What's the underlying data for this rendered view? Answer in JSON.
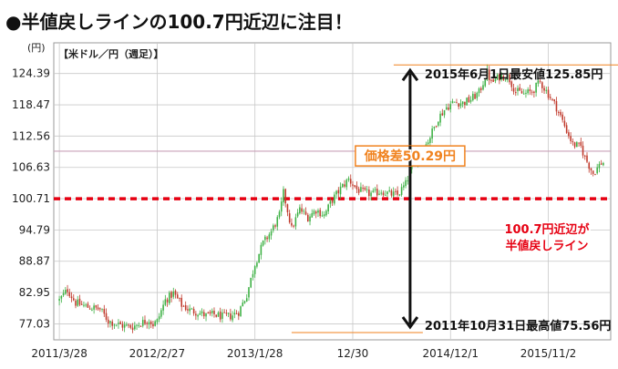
{
  "chart_data": {
    "type": "candlestick",
    "title": "●半値戻しラインの100.7円近辺に注目！",
    "unit_label": "(円)",
    "series_label": "【米ドル／円（週足）】",
    "ylim": [
      74.0,
      130.2
    ],
    "yticks": [
      "124.39",
      "118.47",
      "112.56",
      "106.63",
      "100.71",
      "94.79",
      "88.87",
      "82.95",
      "77.03"
    ],
    "ytick_values": [
      124.39,
      118.47,
      112.56,
      106.63,
      100.71,
      94.79,
      88.87,
      82.95,
      77.03
    ],
    "xticks": [
      "2011/3/28",
      "2012/2/27",
      "2013/1/28",
      "12/30",
      "2014/12/1",
      "2015/11/2"
    ],
    "xtick_weeks": [
      0,
      48,
      96,
      144,
      192,
      240
    ],
    "n_weeks": 268,
    "weekly_close_path": [
      [
        0,
        81.5
      ],
      [
        4,
        83.5
      ],
      [
        8,
        81.0
      ],
      [
        14,
        80.2
      ],
      [
        20,
        79.8
      ],
      [
        24,
        77.6
      ],
      [
        28,
        77.0
      ],
      [
        32,
        76.6
      ],
      [
        36,
        76.5
      ],
      [
        40,
        77.2
      ],
      [
        44,
        77.8
      ],
      [
        46,
        76.9
      ],
      [
        48,
        77.5
      ],
      [
        52,
        81.5
      ],
      [
        56,
        82.8
      ],
      [
        60,
        80.6
      ],
      [
        64,
        79.6
      ],
      [
        68,
        79.2
      ],
      [
        72,
        78.6
      ],
      [
        76,
        78.8
      ],
      [
        80,
        78.4
      ],
      [
        84,
        78.5
      ],
      [
        88,
        79.3
      ],
      [
        92,
        82.5
      ],
      [
        96,
        88.4
      ],
      [
        100,
        92.3
      ],
      [
        104,
        94.5
      ],
      [
        108,
        97.5
      ],
      [
        110,
        101.8
      ],
      [
        112,
        98.5
      ],
      [
        114,
        95.0
      ],
      [
        118,
        98.7
      ],
      [
        122,
        97.2
      ],
      [
        126,
        98.6
      ],
      [
        130,
        97.6
      ],
      [
        134,
        100.5
      ],
      [
        138,
        102.6
      ],
      [
        142,
        104.4
      ],
      [
        146,
        102.5
      ],
      [
        150,
        101.8
      ],
      [
        154,
        101.6
      ],
      [
        158,
        102.2
      ],
      [
        162,
        101.6
      ],
      [
        166,
        101.4
      ],
      [
        170,
        103.5
      ],
      [
        174,
        107.9
      ],
      [
        178,
        109.5
      ],
      [
        182,
        112.5
      ],
      [
        186,
        116.0
      ],
      [
        190,
        118.0
      ],
      [
        194,
        119.0
      ],
      [
        198,
        118.8
      ],
      [
        202,
        119.5
      ],
      [
        206,
        120.8
      ],
      [
        210,
        124.6
      ],
      [
        212,
        122.6
      ],
      [
        216,
        123.8
      ],
      [
        220,
        124.0
      ],
      [
        224,
        121.0
      ],
      [
        228,
        120.5
      ],
      [
        232,
        121.0
      ],
      [
        236,
        122.8
      ],
      [
        240,
        120.5
      ],
      [
        244,
        118.0
      ],
      [
        248,
        114.5
      ],
      [
        252,
        111.0
      ],
      [
        256,
        110.5
      ],
      [
        258,
        108.5
      ],
      [
        262,
        105.5
      ],
      [
        264,
        106.5
      ],
      [
        266,
        107.5
      ]
    ],
    "horizontal_lines": [
      {
        "label": "100.7円近辺が",
        "label2": "半値戻しライン",
        "value": 100.71,
        "style": "dashed",
        "color": "#e60012"
      },
      {
        "value": 109.7,
        "style": "solid",
        "color": "#c9a0b8"
      }
    ],
    "range_annotation": {
      "label": "価格差50.29円",
      "high_value": 125.85,
      "low_value": 75.56,
      "high_label": "2015年6月1日最安値125.85円",
      "low_label": "2011年10月31日最高値75.56円",
      "x_week": 97
    },
    "colors": {
      "up": "#3cb043",
      "down": "#c0392b",
      "accent": "#f0821e",
      "red_line": "#e60012",
      "grid": "#c8c8c8",
      "axis_text": "#222222"
    }
  }
}
